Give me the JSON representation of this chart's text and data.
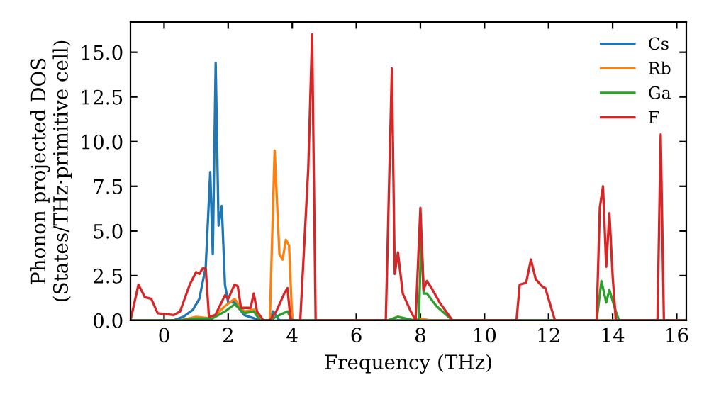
{
  "chart_data": {
    "type": "line",
    "xlabel": "Frequency (THz)",
    "ylabel": "Phonon projected DOS\n(States/THz·primitive cell)",
    "xlim": [
      -1.05,
      16.3
    ],
    "ylim": [
      0,
      16.7
    ],
    "xticks": [
      0,
      2,
      4,
      6,
      8,
      10,
      12,
      14,
      16
    ],
    "yticks": [
      {
        "value": 0,
        "label": "0.0"
      },
      2.5,
      {
        "value": 5,
        "label": "5.0"
      },
      7.5,
      {
        "value": 10,
        "label": "10.0"
      },
      12.5,
      {
        "value": 15,
        "label": "15.0"
      }
    ],
    "legend": "top right",
    "grid": false,
    "series": [
      {
        "name": "Cs",
        "color": "#1f77b4",
        "x": [
          -1.05,
          0.3,
          0.6,
          0.9,
          1.1,
          1.3,
          1.44,
          1.52,
          1.61,
          1.7,
          1.8,
          1.9,
          2.0,
          2.2,
          2.5,
          3.0,
          3.3,
          3.4,
          3.6,
          4.0,
          16.3
        ],
        "values": [
          0,
          0,
          0.2,
          0.6,
          1.2,
          3.0,
          8.3,
          3.7,
          14.4,
          5.3,
          6.4,
          2.0,
          1.0,
          1.0,
          0.3,
          0,
          0,
          0.5,
          0,
          0,
          0
        ]
      },
      {
        "name": "Rb",
        "color": "#ff7f0e",
        "x": [
          -1.05,
          0.5,
          1.0,
          1.5,
          1.9,
          2.2,
          2.5,
          2.8,
          3.0,
          3.3,
          3.45,
          3.6,
          3.7,
          3.8,
          3.9,
          4.0,
          7.0,
          7.3,
          7.7,
          8.0,
          8.3,
          16.3
        ],
        "values": [
          0,
          0,
          0.2,
          0.1,
          0.8,
          1.2,
          0.5,
          0.6,
          0,
          0,
          9.5,
          3.7,
          3.4,
          4.5,
          4.2,
          0,
          0,
          0.2,
          0,
          0.1,
          0,
          0
        ]
      },
      {
        "name": "Ga",
        "color": "#2ca02c",
        "x": [
          -1.05,
          0.5,
          1.0,
          1.5,
          1.9,
          2.2,
          2.5,
          2.8,
          3.0,
          3.3,
          3.6,
          3.85,
          4.0,
          7.0,
          7.3,
          7.8,
          7.95,
          8.03,
          8.1,
          8.2,
          8.5,
          9.0,
          13.5,
          13.65,
          13.8,
          13.9,
          14.1,
          14.2,
          16.3
        ],
        "values": [
          0,
          0,
          0.1,
          0.1,
          0.5,
          0.9,
          0.4,
          0.5,
          0,
          0,
          0.3,
          0.5,
          0,
          0,
          0.2,
          0,
          0,
          4.8,
          1.5,
          1.5,
          0.8,
          0,
          0,
          2.2,
          1.0,
          1.7,
          0.5,
          0,
          0
        ]
      },
      {
        "name": "F",
        "color": "#d62728",
        "x": [
          -1.05,
          -0.8,
          -0.6,
          -0.4,
          -0.2,
          0.3,
          0.5,
          0.8,
          1.0,
          1.1,
          1.2,
          1.3,
          1.4,
          1.6,
          1.9,
          2.0,
          2.2,
          2.3,
          2.4,
          2.7,
          2.8,
          2.9,
          3.1,
          3.3,
          3.5,
          3.75,
          3.85,
          3.95,
          4.25,
          4.5,
          4.62,
          4.73,
          6.92,
          7.11,
          7.2,
          7.3,
          7.45,
          7.7,
          7.85,
          8.0,
          8.1,
          8.2,
          8.35,
          8.6,
          9.0,
          11.0,
          11.1,
          11.3,
          11.45,
          11.6,
          11.8,
          11.9,
          12.2,
          13.5,
          13.6,
          13.7,
          13.8,
          13.9,
          14.0,
          14.1,
          15.4,
          15.5,
          15.6,
          16.3
        ],
        "values": [
          0,
          2.0,
          1.3,
          1.2,
          0.4,
          0.3,
          0.5,
          2.0,
          2.7,
          2.6,
          2.9,
          2.9,
          0.2,
          0.3,
          1.4,
          1.2,
          2.0,
          1.9,
          0.7,
          0.7,
          1.5,
          0.5,
          0,
          0,
          0.5,
          1.5,
          1.8,
          0,
          0,
          8.5,
          16.0,
          0,
          0,
          14.1,
          2.6,
          3.8,
          1.5,
          0.5,
          0,
          6.3,
          1.7,
          2.2,
          1.8,
          1.0,
          0,
          0,
          2.0,
          2.1,
          3.4,
          2.3,
          1.9,
          1.8,
          0,
          0,
          6.3,
          7.5,
          3.0,
          6.0,
          2.5,
          0,
          0,
          10.4,
          0,
          0
        ]
      }
    ]
  }
}
